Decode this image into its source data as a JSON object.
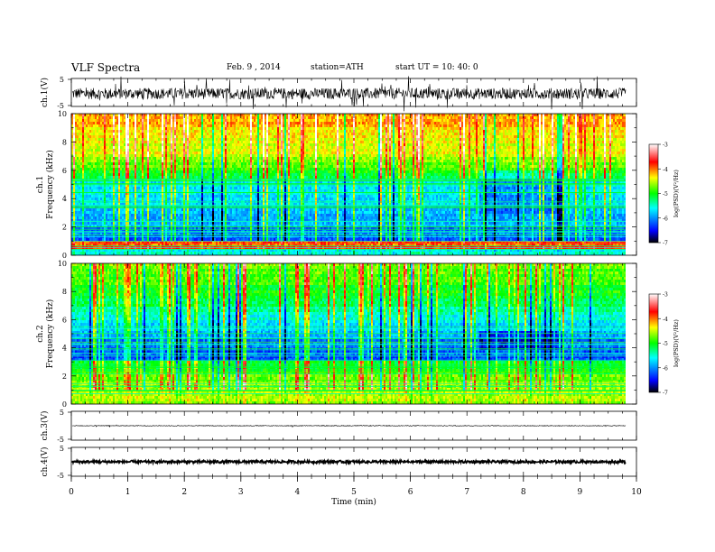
{
  "header": {
    "title": "VLF  Spectra",
    "date": "Feb. 9  , 2014",
    "station": "station=ATH",
    "start": "start  UT  =   10: 40: 0"
  },
  "chart_data": [
    {
      "type": "line",
      "id": "ch1-waveform",
      "ylabel": "ch.1(V)",
      "ylim": [
        -5,
        5
      ],
      "yticks": [
        "5",
        "-5"
      ]
    },
    {
      "type": "heatmap",
      "id": "ch1-spectrogram",
      "ylabel": "ch.1\nFrequency  (kHz)",
      "ylim": [
        0,
        10
      ],
      "yticks": [
        "0",
        "2",
        "4",
        "6",
        "8",
        "10"
      ],
      "colorbar": {
        "label": "log(PSD)(V²/Hz)",
        "range": [
          -7,
          -3
        ],
        "ticks": [
          "-3",
          "-4",
          "-5",
          "-6",
          "-7"
        ]
      }
    },
    {
      "type": "heatmap",
      "id": "ch2-spectrogram",
      "ylabel": "ch.2\nFrequency  (kHz)",
      "ylim": [
        0,
        10
      ],
      "yticks": [
        "0",
        "2",
        "4",
        "6",
        "8",
        "10"
      ],
      "colorbar": {
        "label": "log(PSD)(V²/Hz)",
        "range": [
          -7,
          -3
        ],
        "ticks": [
          "-3",
          "-4",
          "-5",
          "-6",
          "-7"
        ]
      }
    },
    {
      "type": "line",
      "id": "ch3-waveform",
      "ylabel": "ch.3(V)",
      "ylim": [
        -5,
        5
      ],
      "yticks": [
        "5",
        "-5"
      ]
    },
    {
      "type": "line",
      "id": "ch4-waveform",
      "ylabel": "ch.4(V)",
      "ylim": [
        -5,
        5
      ],
      "yticks": [
        "5",
        "-5"
      ]
    }
  ],
  "xaxis": {
    "label": "Time  (min)",
    "xlim": [
      0,
      10
    ],
    "ticks": [
      "0",
      "1",
      "2",
      "3",
      "4",
      "5",
      "6",
      "7",
      "8",
      "9",
      "10"
    ]
  },
  "colors": {
    "colormap": [
      "#000000",
      "#0000ff",
      "#00ffff",
      "#00ff00",
      "#ffff00",
      "#ff0000",
      "#ffffff"
    ]
  }
}
